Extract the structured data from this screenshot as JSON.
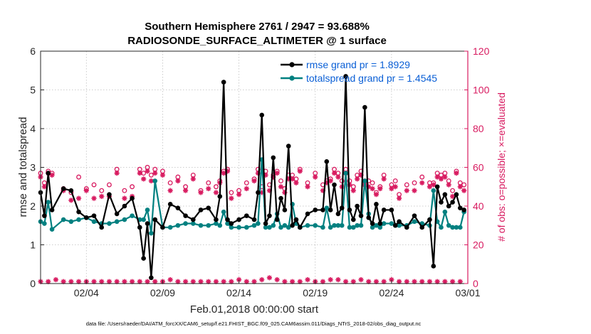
{
  "chart_data": {
    "type": "line",
    "title": "Southern Hemisphere 2761 / 2947 = 93.688%",
    "subtitle": "RADIOSONDE_SURFACE_ALTIMETER @ 1 surface",
    "xlabel": "Feb.01,2018 00:00:00 start",
    "ylabel_left": "rmse and totalspread",
    "ylabel_right": "# of obs: o=possible; ×=evaluated",
    "footer": "data file: /Users/raeder/DAI/ATM_forcXX/CAM6_setup/f.e21.FHIST_BGC.f09_025.CAM6assim.011/Diags_NTrS_2018-02/obs_diag_output.nc",
    "x_range": [
      1,
      29
    ],
    "ylim_left": [
      0,
      6
    ],
    "ylim_right": [
      0,
      120
    ],
    "x_ticks": [
      {
        "value": 4,
        "label": "02/04"
      },
      {
        "value": 9,
        "label": "02/09"
      },
      {
        "value": 14,
        "label": "02/14"
      },
      {
        "value": 19,
        "label": "02/19"
      },
      {
        "value": 24,
        "label": "02/24"
      },
      {
        "value": 29,
        "label": "03/01"
      }
    ],
    "y_ticks_left": [
      "0",
      "1",
      "2",
      "3",
      "4",
      "5",
      "6"
    ],
    "y_ticks_right": [
      "0",
      "20",
      "40",
      "60",
      "80",
      "100",
      "120"
    ],
    "legend_position": "top-right",
    "colors": {
      "rmse": "#000000",
      "spread": "#008080",
      "obs": "#d81b60",
      "axis_right": "#d81b60",
      "legend_text": "#0a5fd6"
    },
    "series": [
      {
        "name": "rmse grand pr = 1.8929",
        "axis": "left",
        "x": [
          1,
          1.25,
          1.5,
          1.75,
          2.5,
          3,
          3.5,
          4,
          4.5,
          5,
          5.5,
          6,
          6.5,
          7,
          7.5,
          7.75,
          8,
          8.25,
          8.5,
          9,
          9.5,
          10,
          10.5,
          11,
          11.5,
          12,
          12.5,
          12.75,
          13,
          13.25,
          13.5,
          14,
          14.5,
          15,
          15.25,
          15.5,
          15.75,
          16,
          16.25,
          16.5,
          16.75,
          17,
          17.25,
          17.5,
          17.75,
          18,
          18.5,
          19,
          19.5,
          19.75,
          20,
          20.25,
          20.5,
          20.75,
          21,
          21.25,
          21.5,
          21.75,
          22,
          22.25,
          22.5,
          22.75,
          23,
          23.25,
          23.5,
          24,
          24.25,
          24.5,
          25,
          25.5,
          26,
          26.5,
          26.75,
          27,
          27.25,
          27.5,
          27.75,
          28,
          28.25,
          28.5,
          28.75
        ],
        "values": [
          2.35,
          1.75,
          2.85,
          1.9,
          2.45,
          2.4,
          1.85,
          1.7,
          1.75,
          1.45,
          2.3,
          1.8,
          2.0,
          2.2,
          1.45,
          0.65,
          1.55,
          0.15,
          1.65,
          1.45,
          2.05,
          1.95,
          1.75,
          1.65,
          1.9,
          1.95,
          1.65,
          2.25,
          5.2,
          1.65,
          1.55,
          1.65,
          1.75,
          1.65,
          2.35,
          4.35,
          1.55,
          1.75,
          3.25,
          1.65,
          2.2,
          1.9,
          3.55,
          1.5,
          1.65,
          1.45,
          1.8,
          1.9,
          1.9,
          3.15,
          1.9,
          2.55,
          1.8,
          1.95,
          5.35,
          1.9,
          1.65,
          2.0,
          1.75,
          4.55,
          1.7,
          1.55,
          2.05,
          1.55,
          1.9,
          1.9,
          1.5,
          1.6,
          1.45,
          1.75,
          1.45,
          1.65,
          0.45,
          2.5,
          2.1,
          2.3,
          2.0,
          2.1,
          2.3,
          1.95,
          1.9
        ]
      },
      {
        "name": "totalspread grand pr = 1.4545",
        "axis": "left",
        "x": [
          1,
          1.25,
          1.5,
          1.75,
          2.5,
          3,
          3.5,
          4,
          4.5,
          5,
          5.5,
          6,
          6.5,
          7,
          7.5,
          7.75,
          8,
          8.25,
          8.5,
          9,
          9.5,
          10,
          10.5,
          11,
          11.5,
          12,
          12.5,
          12.75,
          13,
          13.25,
          13.5,
          14,
          14.5,
          15,
          15.25,
          15.5,
          15.75,
          16,
          16.25,
          16.5,
          16.75,
          17,
          17.25,
          17.5,
          17.75,
          18,
          18.5,
          19,
          19.5,
          19.75,
          20,
          20.25,
          20.5,
          20.75,
          21,
          21.25,
          21.5,
          21.75,
          22,
          22.25,
          22.5,
          22.75,
          23,
          23.25,
          23.5,
          24,
          24.25,
          24.5,
          25,
          25.5,
          26,
          26.5,
          26.75,
          27,
          27.25,
          27.5,
          27.75,
          28,
          28.25,
          28.5,
          28.75
        ],
        "values": [
          1.6,
          1.55,
          2.1,
          1.4,
          1.65,
          1.6,
          1.65,
          1.7,
          1.6,
          1.55,
          1.55,
          1.6,
          1.65,
          1.75,
          1.65,
          1.65,
          1.9,
          1.3,
          2.65,
          1.45,
          1.45,
          1.5,
          1.55,
          1.55,
          1.5,
          1.5,
          1.55,
          1.5,
          1.85,
          1.55,
          1.45,
          1.45,
          1.45,
          1.5,
          1.55,
          3.2,
          1.45,
          1.45,
          1.5,
          1.8,
          1.45,
          1.5,
          1.45,
          2.05,
          1.55,
          1.45,
          1.5,
          1.5,
          1.45,
          1.95,
          1.45,
          1.5,
          1.5,
          1.5,
          2.85,
          1.45,
          1.45,
          1.5,
          1.5,
          2.65,
          1.8,
          1.45,
          1.5,
          1.45,
          1.55,
          1.55,
          1.5,
          1.5,
          1.5,
          1.6,
          1.55,
          1.5,
          2.4,
          1.6,
          1.45,
          1.85,
          1.5,
          1.45,
          1.45,
          1.45,
          1.85
        ]
      },
      {
        "name": "obs possible",
        "axis": "right",
        "marker": "o",
        "x": [
          1,
          1.25,
          1.5,
          1.75,
          2.5,
          3,
          3.5,
          4,
          4.5,
          5,
          5.5,
          6,
          6.5,
          7,
          7.5,
          7.75,
          8,
          8.25,
          8.5,
          9,
          9.5,
          10,
          10.5,
          11,
          11.5,
          12,
          12.5,
          12.75,
          13,
          13.25,
          13.5,
          14,
          14.5,
          15,
          15.25,
          15.5,
          15.75,
          16,
          16.25,
          16.5,
          16.75,
          17,
          17.25,
          17.5,
          17.75,
          18,
          18.5,
          19,
          19.5,
          19.75,
          20,
          20.25,
          20.5,
          20.75,
          21,
          21.25,
          21.5,
          21.75,
          22,
          22.25,
          22.5,
          22.75,
          23,
          23.25,
          23.5,
          24,
          24.25,
          24.5,
          25,
          25.5,
          26,
          26.5,
          26.75,
          27,
          27.25,
          27.5,
          27.75,
          28,
          28.25,
          28.5,
          28.75
        ],
        "values": [
          57,
          52,
          58,
          57,
          49,
          47,
          55,
          49,
          51,
          48,
          51,
          59,
          48,
          50,
          59,
          57,
          60,
          56,
          59,
          58,
          52,
          55,
          50,
          56,
          48,
          52,
          50,
          53,
          58,
          59,
          47,
          48,
          52,
          54,
          59,
          50,
          58,
          51,
          56,
          58,
          53,
          49,
          56,
          56,
          54,
          59,
          52,
          57,
          51,
          53,
          54,
          59,
          57,
          53,
          59,
          53,
          50,
          56,
          58,
          53,
          53,
          52,
          47,
          50,
          56,
          51,
          53,
          46,
          51,
          52,
          55,
          52,
          52,
          57,
          56,
          57,
          53,
          48,
          58,
          52,
          51
        ]
      },
      {
        "name": "obs evaluated",
        "axis": "right",
        "marker": "*",
        "x": [
          1,
          1.25,
          1.5,
          1.75,
          2.5,
          3,
          3.5,
          4,
          4.5,
          5,
          5.5,
          6,
          6.5,
          7,
          7.5,
          7.75,
          8,
          8.25,
          8.5,
          9,
          9.5,
          10,
          10.5,
          11,
          11.5,
          12,
          12.5,
          12.75,
          13,
          13.25,
          13.5,
          14,
          14.5,
          15,
          15.25,
          15.5,
          15.75,
          16,
          16.25,
          16.5,
          16.75,
          17,
          17.25,
          17.5,
          17.75,
          18,
          18.5,
          19,
          19.5,
          19.75,
          20,
          20.25,
          20.5,
          20.75,
          21,
          21.25,
          21.5,
          21.75,
          22,
          22.25,
          22.5,
          22.75,
          23,
          23.25,
          23.5,
          24,
          24.25,
          24.5,
          25,
          25.5,
          26,
          26.5,
          26.75,
          27,
          27.25,
          27.5,
          27.75,
          28,
          28.25,
          28.5,
          28.75
        ],
        "values": [
          55,
          50,
          57,
          56,
          48,
          43,
          44,
          48,
          44,
          45,
          45,
          57,
          44,
          45,
          57,
          54,
          58,
          53,
          57,
          56,
          48,
          53,
          48,
          54,
          47,
          49,
          47,
          52,
          57,
          58,
          44,
          46,
          49,
          53,
          57,
          47,
          56,
          48,
          55,
          57,
          50,
          47,
          54,
          54,
          52,
          58,
          50,
          55,
          48,
          52,
          53,
          57,
          55,
          50,
          57,
          51,
          48,
          54,
          56,
          51,
          50,
          49,
          46,
          49,
          54,
          49,
          50,
          44,
          48,
          48,
          52,
          50,
          51,
          55,
          54,
          55,
          51,
          45,
          57,
          50,
          48
        ]
      },
      {
        "name": "obs not evaluated",
        "axis": "right",
        "marker": "*",
        "x": [
          1,
          1.5,
          2,
          2.5,
          3,
          3.5,
          4,
          4.5,
          5,
          5.5,
          6,
          6.5,
          7,
          7.5,
          8,
          8.5,
          9,
          9.5,
          10,
          10.5,
          11,
          11.5,
          12,
          12.5,
          13,
          13.5,
          14,
          14.5,
          15,
          15.5,
          16,
          16.5,
          17,
          17.5,
          18,
          18.5,
          19,
          19.5,
          20,
          20.5,
          21,
          21.5,
          22,
          22.5,
          23,
          23.5,
          24,
          24.5,
          25,
          25.5,
          26,
          26.5,
          27,
          27.5,
          28,
          28.5
        ],
        "values": [
          1,
          1,
          2,
          1,
          1,
          1,
          1,
          1,
          1,
          1,
          1,
          1,
          1,
          1,
          1,
          1,
          1,
          2,
          1,
          1,
          1,
          1,
          1,
          1,
          1,
          1,
          2,
          1,
          1,
          2,
          3,
          2,
          1,
          1,
          1,
          2,
          1,
          1,
          2,
          2,
          1,
          1,
          2,
          1,
          1,
          1,
          2,
          1,
          1,
          1,
          1,
          1,
          1,
          1,
          1,
          1
        ]
      }
    ]
  }
}
